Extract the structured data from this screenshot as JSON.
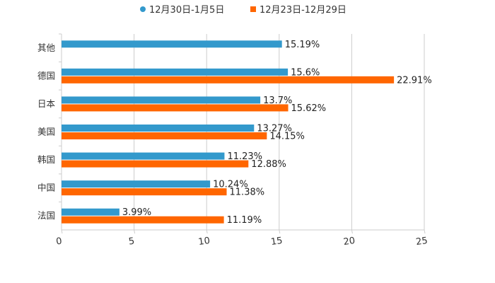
{
  "chart_data": {
    "type": "bar",
    "orientation": "horizontal",
    "title": "",
    "xlabel": "",
    "ylabel": "",
    "categories": [
      "其他",
      "德国",
      "日本",
      "美国",
      "韩国",
      "中国",
      "法国"
    ],
    "series": [
      {
        "name": "12月30日-1月5日",
        "color": "#3399CC",
        "values": [
          15.19,
          15.6,
          13.7,
          13.27,
          11.23,
          10.24,
          3.99
        ],
        "labels": [
          "15.19%",
          "15.6%",
          "13.7%",
          "13.27%",
          "11.23%",
          "10.24%",
          "3.99%"
        ]
      },
      {
        "name": "12月23日-12月29日",
        "color": "#FF6600",
        "values": [
          null,
          22.91,
          15.62,
          14.15,
          12.88,
          11.38,
          11.19
        ],
        "labels": [
          "",
          "22.91%",
          "15.62%",
          "14.15%",
          "12.88%",
          "11.38%",
          "11.19%"
        ]
      }
    ],
    "xlim": [
      0,
      25
    ],
    "xticks": [
      0,
      5,
      10,
      15,
      20,
      25
    ],
    "xtick_labels": [
      "0",
      "5",
      "10",
      "15",
      "20",
      "25"
    ],
    "grid": true,
    "legend_position": "top-center",
    "legend_marker_shapes": [
      "circle",
      "square"
    ]
  }
}
